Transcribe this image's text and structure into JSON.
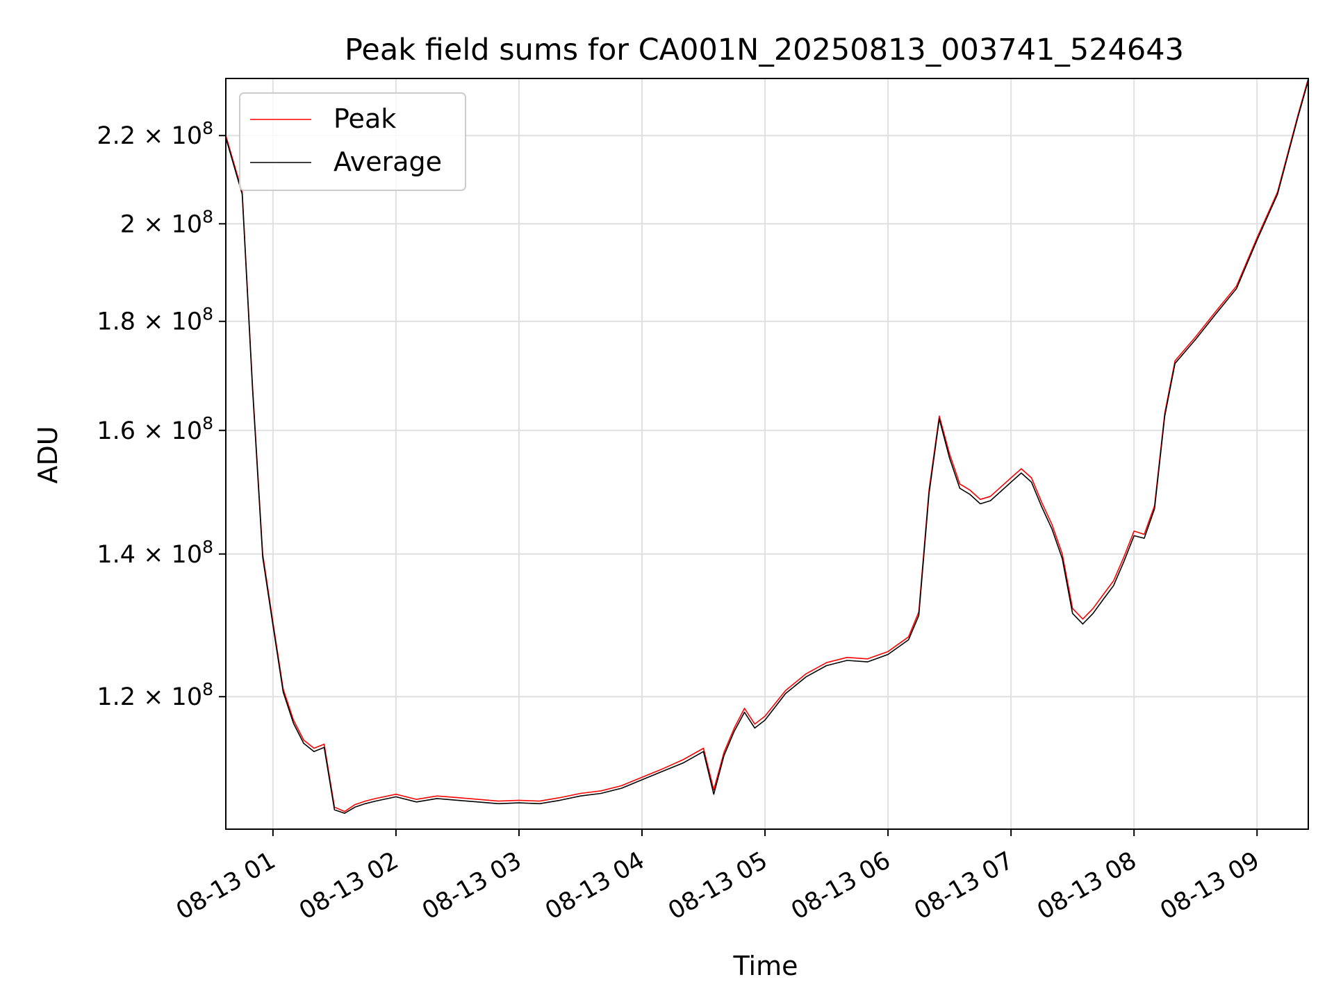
{
  "chart_data": {
    "type": "line",
    "title": "Peak field sums for CA001N_20250813_003741_524643",
    "xlabel": "Time",
    "ylabel": "ADU",
    "yscale": "log",
    "grid": true,
    "legend_position": "upper left",
    "x_range": [
      "2025-08-13 00:37",
      "2025-08-13 09:25"
    ],
    "ylim": [
      104000000,
      234000000
    ],
    "x_ticks": [
      "08-13 01",
      "08-13 02",
      "08-13 03",
      "08-13 04",
      "08-13 05",
      "08-13 06",
      "08-13 07",
      "08-13 08",
      "08-13 09"
    ],
    "y_ticks": [
      {
        "value": 120000000,
        "mantissa": "1.2",
        "base": "10",
        "exp": "8"
      },
      {
        "value": 140000000,
        "mantissa": "1.4",
        "base": "10",
        "exp": "8"
      },
      {
        "value": 160000000,
        "mantissa": "1.6",
        "base": "10",
        "exp": "8"
      },
      {
        "value": 180000000,
        "mantissa": "1.8",
        "base": "10",
        "exp": "8"
      },
      {
        "value": 200000000,
        "mantissa": "2",
        "base": "10",
        "exp": "8"
      },
      {
        "value": 220000000,
        "mantissa": "2.2",
        "base": "10",
        "exp": "8"
      }
    ],
    "series": [
      {
        "name": "Peak",
        "color": "#ff0000",
        "x": [
          "2025-08-13 00:37",
          "2025-08-13 00:45",
          "2025-08-13 00:50",
          "2025-08-13 00:55",
          "2025-08-13 01:00",
          "2025-08-13 01:05",
          "2025-08-13 01:10",
          "2025-08-13 01:15",
          "2025-08-13 01:20",
          "2025-08-13 01:25",
          "2025-08-13 01:30",
          "2025-08-13 01:35",
          "2025-08-13 01:40",
          "2025-08-13 01:45",
          "2025-08-13 01:50",
          "2025-08-13 02:00",
          "2025-08-13 02:10",
          "2025-08-13 02:20",
          "2025-08-13 02:30",
          "2025-08-13 02:40",
          "2025-08-13 02:50",
          "2025-08-13 03:00",
          "2025-08-13 03:10",
          "2025-08-13 03:20",
          "2025-08-13 03:30",
          "2025-08-13 03:40",
          "2025-08-13 03:50",
          "2025-08-13 04:00",
          "2025-08-13 04:10",
          "2025-08-13 04:20",
          "2025-08-13 04:30",
          "2025-08-13 04:35",
          "2025-08-13 04:40",
          "2025-08-13 04:45",
          "2025-08-13 04:50",
          "2025-08-13 04:55",
          "2025-08-13 05:00",
          "2025-08-13 05:10",
          "2025-08-13 05:20",
          "2025-08-13 05:30",
          "2025-08-13 05:40",
          "2025-08-13 05:50",
          "2025-08-13 06:00",
          "2025-08-13 06:10",
          "2025-08-13 06:15",
          "2025-08-13 06:20",
          "2025-08-13 06:25",
          "2025-08-13 06:30",
          "2025-08-13 06:35",
          "2025-08-13 06:40",
          "2025-08-13 06:45",
          "2025-08-13 06:50",
          "2025-08-13 06:55",
          "2025-08-13 07:00",
          "2025-08-13 07:05",
          "2025-08-13 07:10",
          "2025-08-13 07:15",
          "2025-08-13 07:20",
          "2025-08-13 07:25",
          "2025-08-13 07:30",
          "2025-08-13 07:35",
          "2025-08-13 07:40",
          "2025-08-13 07:45",
          "2025-08-13 07:50",
          "2025-08-13 07:55",
          "2025-08-13 08:00",
          "2025-08-13 08:05",
          "2025-08-13 08:10",
          "2025-08-13 08:15",
          "2025-08-13 08:20",
          "2025-08-13 08:30",
          "2025-08-13 08:40",
          "2025-08-13 08:50",
          "2025-08-13 09:00",
          "2025-08-13 09:10",
          "2025-08-13 09:20",
          "2025-08-13 09:25"
        ],
        "values": [
          220000000,
          207000000,
          168000000,
          140000000,
          130000000,
          121000000,
          117000000,
          114500000,
          113500000,
          114000000,
          106500000,
          106000000,
          106800000,
          107200000,
          107500000,
          108000000,
          107400000,
          107800000,
          107600000,
          107400000,
          107200000,
          107300000,
          107200000,
          107600000,
          108100000,
          108400000,
          109000000,
          110000000,
          111000000,
          112100000,
          113500000,
          108500000,
          113000000,
          116000000,
          118500000,
          116500000,
          117500000,
          120800000,
          123000000,
          124500000,
          125200000,
          125000000,
          126000000,
          128000000,
          131500000,
          150000000,
          162500000,
          156000000,
          151000000,
          150000000,
          148500000,
          149000000,
          150500000,
          152000000,
          153500000,
          152000000,
          148000000,
          144500000,
          140000000,
          132000000,
          130500000,
          132000000,
          134000000,
          136000000,
          139500000,
          143500000,
          143000000,
          147500000,
          163000000,
          172500000,
          177000000,
          182000000,
          187000000,
          197000000,
          207000000,
          225000000,
          234000000
        ]
      },
      {
        "name": "Average",
        "color": "#000000",
        "x": [
          "2025-08-13 00:37",
          "2025-08-13 00:45",
          "2025-08-13 00:50",
          "2025-08-13 00:55",
          "2025-08-13 01:00",
          "2025-08-13 01:05",
          "2025-08-13 01:10",
          "2025-08-13 01:15",
          "2025-08-13 01:20",
          "2025-08-13 01:25",
          "2025-08-13 01:30",
          "2025-08-13 01:35",
          "2025-08-13 01:40",
          "2025-08-13 01:45",
          "2025-08-13 01:50",
          "2025-08-13 02:00",
          "2025-08-13 02:10",
          "2025-08-13 02:20",
          "2025-08-13 02:30",
          "2025-08-13 02:40",
          "2025-08-13 02:50",
          "2025-08-13 03:00",
          "2025-08-13 03:10",
          "2025-08-13 03:20",
          "2025-08-13 03:30",
          "2025-08-13 03:40",
          "2025-08-13 03:50",
          "2025-08-13 04:00",
          "2025-08-13 04:10",
          "2025-08-13 04:20",
          "2025-08-13 04:30",
          "2025-08-13 04:35",
          "2025-08-13 04:40",
          "2025-08-13 04:45",
          "2025-08-13 04:50",
          "2025-08-13 04:55",
          "2025-08-13 05:00",
          "2025-08-13 05:10",
          "2025-08-13 05:20",
          "2025-08-13 05:30",
          "2025-08-13 05:40",
          "2025-08-13 05:50",
          "2025-08-13 06:00",
          "2025-08-13 06:10",
          "2025-08-13 06:15",
          "2025-08-13 06:20",
          "2025-08-13 06:25",
          "2025-08-13 06:30",
          "2025-08-13 06:35",
          "2025-08-13 06:40",
          "2025-08-13 06:45",
          "2025-08-13 06:50",
          "2025-08-13 06:55",
          "2025-08-13 07:00",
          "2025-08-13 07:05",
          "2025-08-13 07:10",
          "2025-08-13 07:15",
          "2025-08-13 07:20",
          "2025-08-13 07:25",
          "2025-08-13 07:30",
          "2025-08-13 07:35",
          "2025-08-13 07:40",
          "2025-08-13 07:45",
          "2025-08-13 07:50",
          "2025-08-13 07:55",
          "2025-08-13 08:00",
          "2025-08-13 08:05",
          "2025-08-13 08:10",
          "2025-08-13 08:15",
          "2025-08-13 08:20",
          "2025-08-13 08:30",
          "2025-08-13 08:40",
          "2025-08-13 08:50",
          "2025-08-13 09:00",
          "2025-08-13 09:10",
          "2025-08-13 09:20",
          "2025-08-13 09:25"
        ],
        "values": [
          219500000,
          206500000,
          167500000,
          139500000,
          129600000,
          120600000,
          116600000,
          114100000,
          113100000,
          113600000,
          106200000,
          105800000,
          106500000,
          106900000,
          107200000,
          107700000,
          107100000,
          107500000,
          107300000,
          107100000,
          106900000,
          107000000,
          106900000,
          107300000,
          107800000,
          108100000,
          108700000,
          109700000,
          110700000,
          111700000,
          113100000,
          108000000,
          112600000,
          115600000,
          118000000,
          116000000,
          117000000,
          120400000,
          122600000,
          124100000,
          124800000,
          124600000,
          125600000,
          127600000,
          131000000,
          149400000,
          162000000,
          155300000,
          150300000,
          149300000,
          147800000,
          148300000,
          149800000,
          151300000,
          152800000,
          151300000,
          147300000,
          143800000,
          139300000,
          131300000,
          129800000,
          131300000,
          133300000,
          135300000,
          138800000,
          142800000,
          142400000,
          147000000,
          162500000,
          172000000,
          176500000,
          181500000,
          186500000,
          196500000,
          206500000,
          224500000,
          233500000
        ]
      }
    ]
  }
}
